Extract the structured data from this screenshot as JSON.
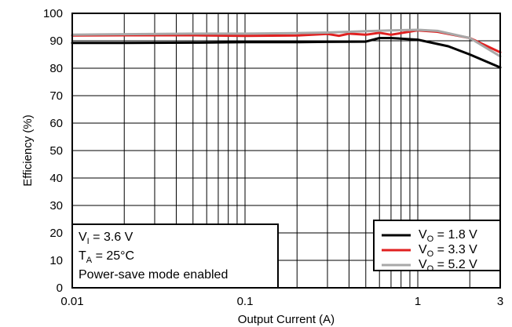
{
  "chart_data": {
    "type": "line",
    "xlabel": "Output Current (A)",
    "ylabel": "Efficiency (%)",
    "xscale": "log",
    "xlim": [
      0.01,
      3
    ],
    "ylim": [
      0,
      100
    ],
    "grid": true,
    "xticks": [
      0.01,
      0.1,
      1,
      3
    ],
    "xtick_labels": [
      "0.01",
      "0.1",
      "1",
      "3"
    ],
    "yticks": [
      0,
      10,
      20,
      30,
      40,
      50,
      60,
      70,
      80,
      90,
      100
    ],
    "ytick_labels": [
      "0",
      "10",
      "20",
      "30",
      "40",
      "50",
      "60",
      "70",
      "80",
      "90",
      "100"
    ],
    "annotation": {
      "line1": {
        "main": "V",
        "sub": "I",
        "rest": " = 3.6 V"
      },
      "line2": {
        "main": "T",
        "sub": "A",
        "rest": " = 25°C"
      },
      "line3": "Power-save mode enabled"
    },
    "legend_position": "bottom-right",
    "series": [
      {
        "name": "VO = 1.8 V",
        "label_main": "V",
        "label_sub": "O",
        "label_rest": " = 1.8 V",
        "color": "#000000",
        "x": [
          0.01,
          0.02,
          0.05,
          0.1,
          0.2,
          0.3,
          0.5,
          0.6,
          0.7,
          1.0,
          1.5,
          2.0,
          3.0
        ],
        "y": [
          89.2,
          89.2,
          89.3,
          89.5,
          89.5,
          89.6,
          89.7,
          91.0,
          91.0,
          90.4,
          88.0,
          85.0,
          80.3
        ]
      },
      {
        "name": "VO = 3.3 V",
        "label_main": "V",
        "label_sub": "O",
        "label_rest": " = 3.3 V",
        "color": "#e02020",
        "x": [
          0.01,
          0.02,
          0.05,
          0.1,
          0.2,
          0.3,
          0.35,
          0.4,
          0.5,
          0.6,
          0.7,
          0.8,
          1.0,
          1.3,
          2.0,
          3.0
        ],
        "y": [
          91.9,
          92.0,
          92.0,
          91.8,
          91.9,
          92.5,
          91.8,
          92.6,
          92.2,
          92.9,
          92.2,
          92.8,
          93.8,
          93.3,
          91.0,
          85.8
        ]
      },
      {
        "name": "VO = 5.2 V",
        "label_main": "V",
        "label_sub": "O",
        "label_rest": " = 5.2 V",
        "color": "#a8a8a8",
        "x": [
          0.01,
          0.02,
          0.05,
          0.1,
          0.2,
          0.3,
          0.5,
          0.7,
          1.0,
          1.3,
          2.0,
          3.0
        ],
        "y": [
          92.2,
          92.4,
          92.6,
          92.6,
          92.8,
          93.0,
          93.5,
          93.8,
          94.0,
          93.6,
          91.0,
          84.3
        ]
      }
    ]
  }
}
